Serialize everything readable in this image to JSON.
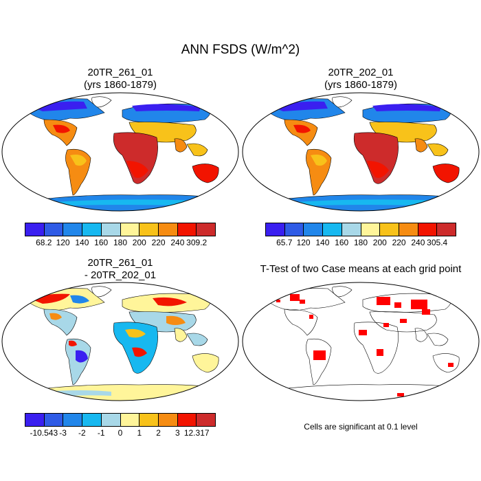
{
  "main_title": "ANN FSDS (W/m^2)",
  "panels": {
    "top_left": {
      "title_line1": "20TR_261_01",
      "title_line2": "(yrs 1860-1879)"
    },
    "top_right": {
      "title_line1": "20TR_202_01",
      "title_line2": "(yrs 1860-1879)"
    },
    "bottom_left": {
      "title_line1": "20TR_261_01",
      "title_line2": "- 20TR_202_01"
    },
    "bottom_right": {
      "title": "T-Test of two Case means at each grid point",
      "note": "Cells are significant at 0.1 level"
    }
  },
  "colorbars": {
    "top_left": {
      "colors": [
        "#3a1ff0",
        "#2f5be6",
        "#2186ea",
        "#17b8f0",
        "#a8d8e8",
        "#fff59a",
        "#f8c21a",
        "#f68c12",
        "#f21400",
        "#cd2b2b"
      ],
      "labels": [
        "68.2",
        "120",
        "140",
        "160",
        "180",
        "200",
        "220",
        "240",
        "309.2"
      ]
    },
    "top_right": {
      "colors": [
        "#3a1ff0",
        "#2f5be6",
        "#2186ea",
        "#17b8f0",
        "#a8d8e8",
        "#fff59a",
        "#f8c21a",
        "#f68c12",
        "#f21400",
        "#cd2b2b"
      ],
      "labels": [
        "65.7",
        "120",
        "140",
        "160",
        "180",
        "200",
        "220",
        "240",
        "305.4"
      ]
    },
    "bottom_left": {
      "colors": [
        "#3a1ff0",
        "#2f5be6",
        "#2186ea",
        "#17b8f0",
        "#a8d8e8",
        "#fff59a",
        "#f8c21a",
        "#f68c12",
        "#f21400",
        "#cd2b2b"
      ],
      "labels": [
        "-10.543",
        "-3",
        "-2",
        "-1",
        "0",
        "1",
        "2",
        "3",
        "12.317"
      ]
    }
  }
}
